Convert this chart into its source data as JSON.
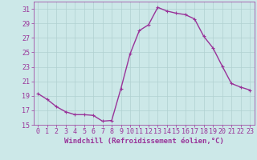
{
  "x": [
    0,
    1,
    2,
    3,
    4,
    5,
    6,
    7,
    8,
    9,
    10,
    11,
    12,
    13,
    14,
    15,
    16,
    17,
    18,
    19,
    20,
    21,
    22,
    23
  ],
  "y": [
    19.3,
    18.5,
    17.5,
    16.8,
    16.4,
    16.4,
    16.3,
    15.5,
    15.6,
    20.0,
    24.8,
    28.0,
    28.8,
    31.2,
    30.7,
    30.4,
    30.2,
    29.6,
    27.2,
    25.6,
    23.1,
    20.7,
    20.2,
    19.8
  ],
  "line_color": "#993399",
  "marker": "+",
  "markersize": 3,
  "linewidth": 1.0,
  "bg_color": "#cce8e8",
  "grid_color": "#b0d0d0",
  "xlabel": "Windchill (Refroidissement éolien,°C)",
  "xlabel_color": "#993399",
  "tick_color": "#993399",
  "ylim": [
    15,
    32
  ],
  "xlim": [
    -0.5,
    23.5
  ],
  "yticks": [
    15,
    17,
    19,
    21,
    23,
    25,
    27,
    29,
    31
  ],
  "xticks": [
    0,
    1,
    2,
    3,
    4,
    5,
    6,
    7,
    8,
    9,
    10,
    11,
    12,
    13,
    14,
    15,
    16,
    17,
    18,
    19,
    20,
    21,
    22,
    23
  ],
  "xlabel_fontsize": 6.5,
  "tick_fontsize": 6.0
}
